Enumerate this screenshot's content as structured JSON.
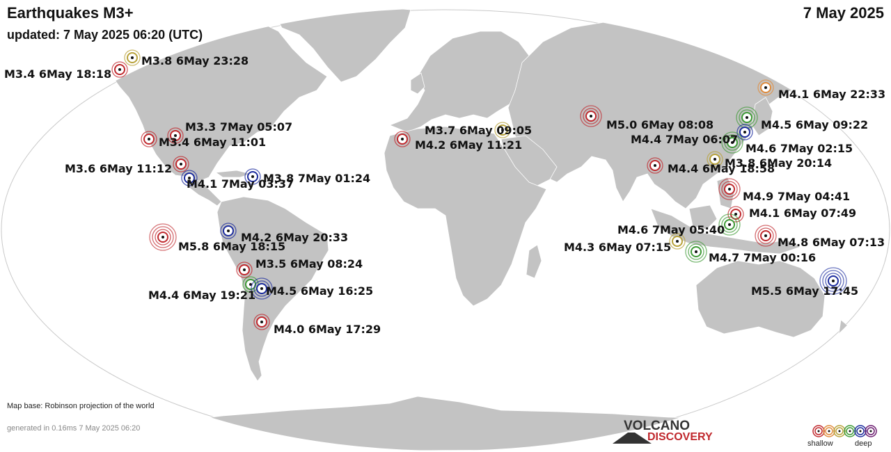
{
  "header": {
    "title": "Earthquakes M3+",
    "updated": "updated:  7 May 2025 06:20 (UTC)",
    "date": "7 May 2025"
  },
  "footer": {
    "map_base": "Map base: Robinson projection of the world",
    "generated": "generated in 0.16ms  7 May 2025 06:20"
  },
  "logo": {
    "line1": "VOLCANO",
    "line2": "DISCOVERY"
  },
  "legend": {
    "left": "shallow",
    "right": "deep"
  },
  "depth_colors": [
    "#c0282d",
    "#e08c3c",
    "#b8a23a",
    "#3d9a35",
    "#1c2c9e",
    "#6a1a6e"
  ],
  "earthquakes": [
    {
      "label": "M3.4  6May 18:18",
      "depth": 0,
      "mag": 3.4
    },
    {
      "label": "M3.8  6May 23:28",
      "depth": 2,
      "mag": 3.8
    },
    {
      "label": "M3.3  7May 05:07",
      "depth": 0,
      "mag": 3.3
    },
    {
      "label": "M3.4  6May 11:01",
      "depth": 0,
      "mag": 3.4
    },
    {
      "label": "M3.6  6May 11:12",
      "depth": 0,
      "mag": 3.6
    },
    {
      "label": "M4.1  7May 03:37",
      "depth": 4,
      "mag": 4.1
    },
    {
      "label": "M3.8  7May 01:24",
      "depth": 4,
      "mag": 3.8
    },
    {
      "label": "M5.8  6May 18:15",
      "depth": 0,
      "mag": 5.8
    },
    {
      "label": "M4.2  6May 20:33",
      "depth": 4,
      "mag": 4.2
    },
    {
      "label": "M3.5  6May 08:24",
      "depth": 0,
      "mag": 3.5
    },
    {
      "label": "M4.4  6May 19:21",
      "depth": 3,
      "mag": 4.4
    },
    {
      "label": "M4.5  6May 16:25",
      "depth": 4,
      "mag": 4.5
    },
    {
      "label": "M4.0  6May 17:29",
      "depth": 0,
      "mag": 4.0
    },
    {
      "label": "M4.2  6May 11:21",
      "depth": 0,
      "mag": 4.2
    },
    {
      "label": "M3.7  6May 09:05",
      "depth": 2,
      "mag": 3.7
    },
    {
      "label": "M5.0  6May 08:08",
      "depth": 0,
      "mag": 5.0
    },
    {
      "label": "M4.4  6May 18:58",
      "depth": 0,
      "mag": 4.4
    },
    {
      "label": "M4.1  6May 22:33",
      "depth": 1,
      "mag": 4.1
    },
    {
      "label": "M4.5  6May 09:22",
      "depth": 3,
      "mag": 4.5
    },
    {
      "label": "M4.4  7May 06:07",
      "depth": 4,
      "mag": 4.4
    },
    {
      "label": "M4.6  7May 02:15",
      "depth": 3,
      "mag": 4.6
    },
    {
      "label": "M3.8  6May 20:14",
      "depth": 2,
      "mag": 3.8
    },
    {
      "label": "M4.9  7May 04:41",
      "depth": 0,
      "mag": 4.9
    },
    {
      "label": "M4.1  6May 07:49",
      "depth": 0,
      "mag": 4.1
    },
    {
      "label": "M4.6  7May 05:40",
      "depth": 3,
      "mag": 4.6
    },
    {
      "label": "M4.3  6May 07:15",
      "depth": 2,
      "mag": 4.3
    },
    {
      "label": "M4.7  7May 00:16",
      "depth": 3,
      "mag": 4.7
    },
    {
      "label": "M4.8  6May 07:13",
      "depth": 0,
      "mag": 4.8
    },
    {
      "label": "M5.5  6May 17:45",
      "depth": 4,
      "mag": 5.5
    }
  ]
}
